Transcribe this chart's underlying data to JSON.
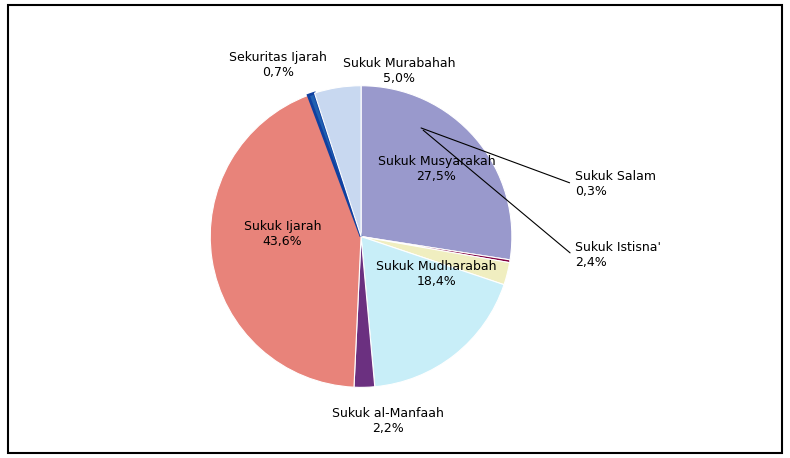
{
  "slices_ordered": [
    {
      "label": "Sukuk Musyarakah",
      "pct": 27.5,
      "color": "#9999CC"
    },
    {
      "label": "Sukuk Salam",
      "pct": 0.3,
      "color": "#800040"
    },
    {
      "label": "Sukuk Istisna'",
      "pct": 2.4,
      "color": "#F0EEC0"
    },
    {
      "label": "Sukuk Mudharabah",
      "pct": 18.4,
      "color": "#C8EEF8"
    },
    {
      "label": "Sukuk al-Manfaah",
      "pct": 2.2,
      "color": "#6B3080"
    },
    {
      "label": "Sukuk Ijarah",
      "pct": 43.6,
      "color": "#E8837A"
    },
    {
      "label": "Sekuritas Ijarah",
      "pct": 0.7,
      "color": "#2060B0"
    },
    {
      "label": "Sukuk Murabahah",
      "pct": 5.0,
      "color": "#C8D8F0"
    }
  ],
  "startangle": 90,
  "label_fontsize": 9,
  "figsize": [
    7.9,
    4.58
  ],
  "dpi": 100,
  "bg_color": "#FFFFFF"
}
